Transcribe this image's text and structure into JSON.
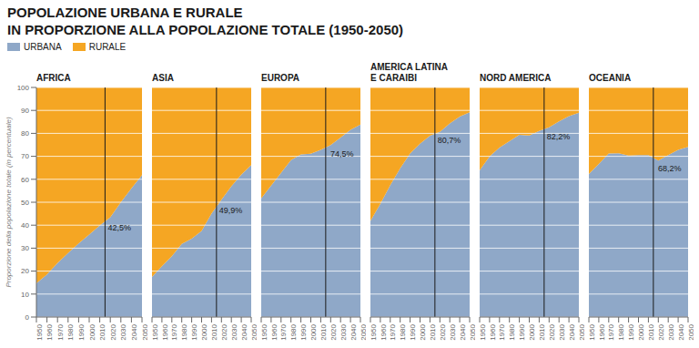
{
  "title": "POPOLAZIONE URBANA E RURALE",
  "subtitle": "IN PROPORZIONE ALLA POPOLAZIONE TOTALE (1950-2050)",
  "chart_data": [
    {
      "type": "area",
      "stacked": true,
      "title": "AFRICA",
      "x": [
        1950,
        1960,
        1970,
        1980,
        1990,
        2000,
        2010,
        2020,
        2030,
        2040,
        2050
      ],
      "series": [
        {
          "name": "URBANA",
          "color": "#8fa8c8",
          "values": [
            14.7,
            18.6,
            23.5,
            27.9,
            32.0,
            35.9,
            39.9,
            43.5,
            50.0,
            56.1,
            61.8
          ]
        },
        {
          "name": "RURALE",
          "color": "#f5a623",
          "values": [
            85.3,
            81.4,
            76.5,
            72.1,
            68.0,
            64.1,
            60.1,
            56.5,
            50.0,
            43.9,
            38.2
          ]
        }
      ],
      "xlim": [
        1950,
        2050
      ],
      "xticks": [
        1950,
        1960,
        1970,
        1980,
        1990,
        2000,
        2010,
        2020,
        2030,
        2040,
        2050
      ],
      "ylim": [
        0,
        100
      ],
      "yticks": [
        0,
        10,
        20,
        30,
        40,
        50,
        60,
        70,
        80,
        90,
        100
      ],
      "grid": true,
      "y_label": "Proporzione della popolazione totale (in percentuale)",
      "legend": "upper left",
      "vline": 2015,
      "annotations": [
        {
          "x": 2015,
          "y": 42.5,
          "text": "42,5%"
        }
      ]
    },
    {
      "type": "area",
      "stacked": true,
      "title": "ASIA",
      "x": [
        1950,
        1960,
        1970,
        1980,
        1990,
        2000,
        2010,
        2020,
        2030,
        2040,
        2050
      ],
      "series": [
        {
          "name": "URBANA",
          "color": "#8fa8c8",
          "values": [
            17.5,
            22.1,
            26.5,
            31.8,
            34.1,
            37.5,
            45.0,
            51.1,
            56.9,
            62.0,
            66.2
          ]
        },
        {
          "name": "RURALE",
          "color": "#f5a623",
          "values": [
            82.5,
            77.9,
            73.5,
            68.2,
            65.9,
            62.5,
            55.0,
            48.9,
            43.1,
            38.0,
            33.8
          ]
        }
      ],
      "xlim": [
        1950,
        2050
      ],
      "xticks": [
        1950,
        1960,
        1970,
        1980,
        1990,
        2000,
        2010,
        2020,
        2030,
        2040,
        2050
      ],
      "ylim": [
        0,
        100
      ],
      "yticks": [
        0,
        10,
        20,
        30,
        40,
        50,
        60,
        70,
        80,
        90,
        100
      ],
      "grid": true,
      "tick_labels": "x",
      "vline": 2015,
      "annotations": [
        {
          "x": 2015,
          "y": 49.9,
          "text": "49,9%"
        }
      ]
    },
    {
      "type": "area",
      "stacked": true,
      "title": "EUROPA",
      "x": [
        1950,
        1960,
        1970,
        1980,
        1990,
        2000,
        2010,
        2020,
        2030,
        2040,
        2050
      ],
      "series": [
        {
          "name": "URBANA",
          "color": "#8fa8c8",
          "values": [
            51.7,
            57.2,
            62.8,
            68.4,
            70.8,
            71.1,
            72.8,
            74.9,
            78.2,
            81.5,
            83.8
          ]
        },
        {
          "name": "RURALE",
          "color": "#f5a623",
          "values": [
            48.3,
            42.8,
            37.2,
            31.6,
            29.2,
            28.9,
            27.2,
            25.1,
            21.8,
            18.5,
            16.2
          ]
        }
      ],
      "xlim": [
        1950,
        2050
      ],
      "xticks": [
        1950,
        1960,
        1970,
        1980,
        1990,
        2000,
        2010,
        2020,
        2030,
        2040,
        2050
      ],
      "ylim": [
        0,
        100
      ],
      "yticks": [
        0,
        10,
        20,
        30,
        40,
        50,
        60,
        70,
        80,
        90,
        100
      ],
      "grid": true,
      "tick_labels": "x",
      "vline": 2015,
      "annotations": [
        {
          "x": 2017,
          "y": 74.5,
          "text": "74,5%"
        }
      ]
    },
    {
      "type": "area",
      "stacked": true,
      "title": "AMERICA LATINA\nE CARAIBI",
      "x": [
        1950,
        1960,
        1970,
        1980,
        1990,
        2000,
        2010,
        2020,
        2030,
        2040,
        2050
      ],
      "series": [
        {
          "name": "URBANA",
          "color": "#8fa8c8",
          "values": [
            41.9,
            49.3,
            57.4,
            64.8,
            71.2,
            75.5,
            79.0,
            80.7,
            84.3,
            87.3,
            89.2
          ]
        },
        {
          "name": "RURALE",
          "color": "#f5a623",
          "values": [
            58.1,
            50.7,
            42.6,
            35.2,
            28.8,
            24.5,
            21.0,
            19.3,
            15.7,
            12.7,
            10.8
          ]
        }
      ],
      "xlim": [
        1950,
        2050
      ],
      "xticks": [
        1950,
        1960,
        1970,
        1980,
        1990,
        2000,
        2010,
        2020,
        2030,
        2040,
        2050
      ],
      "ylim": [
        0,
        100
      ],
      "yticks": [
        0,
        10,
        20,
        30,
        40,
        50,
        60,
        70,
        80,
        90,
        100
      ],
      "grid": true,
      "tick_labels": "x",
      "vline": 2015,
      "annotations": [
        {
          "x": 2015,
          "y": 80.7,
          "text": "80,7%"
        }
      ]
    },
    {
      "type": "area",
      "stacked": true,
      "title": "NORD AMERICA",
      "x": [
        1950,
        1960,
        1970,
        1980,
        1990,
        2000,
        2010,
        2020,
        2030,
        2040,
        2050
      ],
      "series": [
        {
          "name": "URBANA",
          "color": "#8fa8c8",
          "values": [
            63.9,
            69.9,
            73.8,
            76.6,
            79.4,
            79.1,
            81.1,
            82.6,
            85.2,
            87.5,
            89.0
          ]
        },
        {
          "name": "RURALE",
          "color": "#f5a623",
          "values": [
            36.1,
            30.1,
            26.2,
            23.4,
            20.6,
            20.9,
            18.9,
            17.4,
            14.8,
            12.5,
            11.0
          ]
        }
      ],
      "xlim": [
        1950,
        2050
      ],
      "xticks": [
        1950,
        1960,
        1970,
        1980,
        1990,
        2000,
        2010,
        2020,
        2030,
        2040,
        2050
      ],
      "ylim": [
        0,
        100
      ],
      "yticks": [
        0,
        10,
        20,
        30,
        40,
        50,
        60,
        70,
        80,
        90,
        100
      ],
      "grid": true,
      "tick_labels": "x",
      "vline": 2015,
      "annotations": [
        {
          "x": 2015,
          "y": 82.2,
          "text": "82,2%"
        }
      ]
    },
    {
      "type": "area",
      "stacked": true,
      "title": "OCEANIA",
      "x": [
        1950,
        1960,
        1970,
        1980,
        1990,
        2000,
        2010,
        2020,
        2030,
        2040,
        2050
      ],
      "series": [
        {
          "name": "URBANA",
          "color": "#8fa8c8",
          "values": [
            62.3,
            66.7,
            71.2,
            71.3,
            70.3,
            70.5,
            70.5,
            68.2,
            70.5,
            72.8,
            74.1
          ]
        },
        {
          "name": "RURALE",
          "color": "#f5a623",
          "values": [
            37.7,
            33.3,
            28.8,
            28.7,
            29.7,
            29.5,
            29.5,
            31.8,
            29.5,
            27.2,
            25.9
          ]
        }
      ],
      "xlim": [
        1950,
        2050
      ],
      "xticks": [
        1950,
        1960,
        1970,
        1980,
        1990,
        2000,
        2010,
        2020,
        2030,
        2040,
        2050
      ],
      "ylim": [
        0,
        100
      ],
      "yticks": [
        0,
        10,
        20,
        30,
        40,
        50,
        60,
        70,
        80,
        90,
        100
      ],
      "grid": true,
      "tick_labels": "x",
      "vline": 2015,
      "annotations": [
        {
          "x": 2017,
          "y": 68.2,
          "text": "68,2%"
        }
      ]
    }
  ]
}
